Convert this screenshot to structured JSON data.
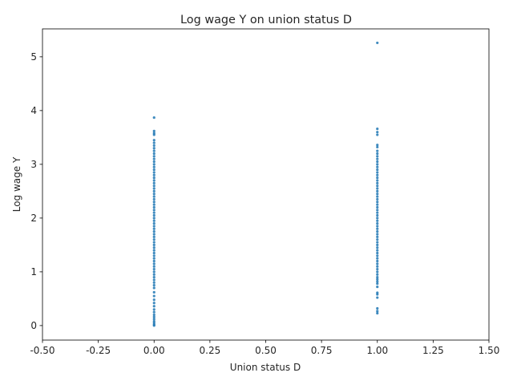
{
  "chart_data": {
    "type": "scatter",
    "title": "Log wage Y on union status D",
    "xlabel": "Union status D",
    "ylabel": "Log wage Y",
    "xlim": [
      -0.5,
      1.5
    ],
    "ylim": [
      -0.27,
      5.52
    ],
    "xticks": [
      -0.5,
      -0.25,
      0.0,
      0.25,
      0.5,
      0.75,
      1.0,
      1.25,
      1.5
    ],
    "xtick_labels": [
      "-0.50",
      "-0.25",
      "0.00",
      "0.25",
      "0.50",
      "0.75",
      "1.00",
      "1.25",
      "1.50"
    ],
    "yticks": [
      0,
      1,
      2,
      3,
      4,
      5
    ],
    "ytick_labels": [
      "0",
      "1",
      "2",
      "3",
      "4",
      "5"
    ],
    "grid": false,
    "legend": "none",
    "marker_color": "#1f77b4",
    "series": [
      {
        "x_value": 0,
        "values": [
          0.0,
          0.02,
          0.05,
          0.08,
          0.12,
          0.16,
          0.2,
          0.25,
          0.3,
          0.36,
          0.42,
          0.48,
          0.55,
          0.62,
          0.7,
          0.75,
          0.8,
          0.85,
          0.9,
          0.95,
          1.0,
          1.05,
          1.1,
          1.15,
          1.2,
          1.25,
          1.3,
          1.35,
          1.4,
          1.45,
          1.5,
          1.55,
          1.6,
          1.65,
          1.7,
          1.75,
          1.8,
          1.85,
          1.9,
          1.95,
          2.0,
          2.05,
          2.1,
          2.15,
          2.2,
          2.25,
          2.3,
          2.35,
          2.4,
          2.45,
          2.5,
          2.55,
          2.6,
          2.65,
          2.7,
          2.75,
          2.8,
          2.85,
          2.9,
          2.95,
          3.0,
          3.05,
          3.1,
          3.15,
          3.2,
          3.25,
          3.3,
          3.35,
          3.4,
          3.45,
          3.55,
          3.58,
          3.62,
          3.87
        ]
      },
      {
        "x_value": 1,
        "values": [
          0.23,
          0.27,
          0.32,
          0.52,
          0.58,
          0.61,
          0.72,
          0.78,
          0.82,
          0.86,
          0.9,
          0.95,
          1.0,
          1.05,
          1.1,
          1.15,
          1.2,
          1.25,
          1.3,
          1.35,
          1.4,
          1.45,
          1.5,
          1.55,
          1.6,
          1.65,
          1.7,
          1.75,
          1.8,
          1.85,
          1.9,
          1.95,
          2.0,
          2.05,
          2.1,
          2.15,
          2.2,
          2.25,
          2.3,
          2.35,
          2.4,
          2.45,
          2.5,
          2.55,
          2.6,
          2.65,
          2.7,
          2.75,
          2.8,
          2.85,
          2.9,
          2.95,
          3.0,
          3.05,
          3.1,
          3.15,
          3.2,
          3.25,
          3.32,
          3.36,
          3.55,
          3.6,
          3.66,
          5.26
        ]
      }
    ]
  }
}
